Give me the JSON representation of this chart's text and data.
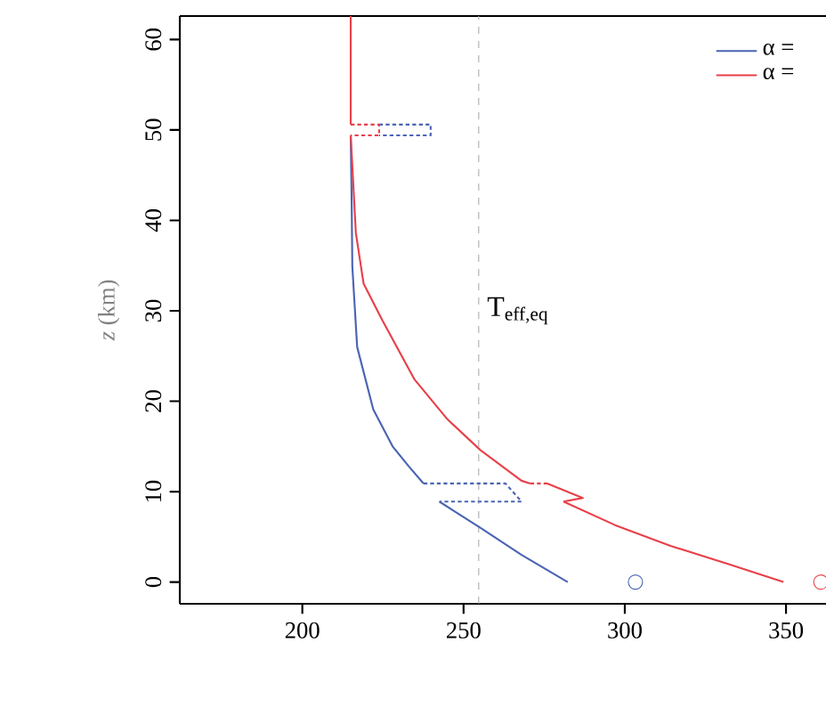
{
  "chart_data": {
    "type": "line",
    "ylabel": "*z* (km)",
    "xlim": [
      162,
      362.4
    ],
    "ylim": [
      -2.4,
      62.6
    ],
    "xticks": [
      200,
      250,
      300,
      350
    ],
    "yticks": [
      0,
      10,
      20,
      30,
      40,
      50,
      60
    ],
    "legend": "top right",
    "marker": "none",
    "ref_lines": [
      {
        "axis": "x",
        "value": 254.7,
        "label": "T$_{eff,eq}$",
        "color": "#aaaaaa",
        "line_style": "dashed"
      }
    ],
    "series": [
      {
        "color": "#e8404a",
        "x": [
          215,
          215
        ],
        "values": [
          62.6,
          50.6
        ]
      },
      {
        "color": "#4a64b4",
        "line_style": "dotted",
        "x": [
          223.8,
          239.8,
          239.8,
          223.8
        ],
        "values": [
          50.6,
          50.6,
          49.4,
          49.4
        ]
      },
      {
        "color": "#e8404a",
        "line_style": "dotted",
        "x": [
          215,
          223.8,
          223.8,
          215
        ],
        "values": [
          50.6,
          50.6,
          49.4,
          49.4
        ]
      },
      {
        "name": "α =",
        "color": "#4a64b4",
        "x": [
          215,
          215.3,
          215.5,
          217,
          222,
          228,
          233,
          237.6
        ],
        "values": [
          49.4,
          42,
          34.9,
          26,
          19.1,
          15,
          12.8,
          10.9
        ]
      },
      {
        "color": "#4a64b4",
        "line_style": "dotted",
        "x": [
          237.6,
          263,
          268,
          242.5
        ],
        "values": [
          10.9,
          10.9,
          8.9,
          8.9
        ]
      },
      {
        "color": "#4a64b4",
        "x": [
          242.5,
          255.2,
          268,
          282.3
        ],
        "values": [
          8.9,
          6.0,
          3.0,
          0
        ]
      },
      {
        "name": "α =",
        "color": "#e8404a",
        "x": [
          215,
          215.8,
          216.6,
          219,
          224.9,
          234.8,
          245,
          255.2,
          268,
          270.7
        ],
        "values": [
          49.4,
          44,
          38.6,
          33,
          28.9,
          22.4,
          18,
          14.6,
          11.2,
          10.9
        ]
      },
      {
        "color": "#e8404a",
        "line_style": "dotted",
        "x": [
          270.7,
          276
        ],
        "values": [
          10.9,
          10.9
        ]
      },
      {
        "color": "#e8404a",
        "x": [
          276,
          287,
          281
        ],
        "values": [
          10.9,
          9.3,
          8.9
        ]
      },
      {
        "color": "#e8404a",
        "x": [
          281,
          297,
          314.2,
          332,
          349.2
        ],
        "values": [
          8.9,
          6.3,
          4.0,
          2.0,
          0
        ]
      },
      {
        "type": "scatter",
        "marker": "circle",
        "color": "#4a64b4",
        "x": [
          303.3
        ],
        "values": [
          0
        ]
      },
      {
        "type": "scatter",
        "marker": "circle",
        "color": "#e8404a",
        "x": [
          360.8
        ],
        "values": [
          0
        ]
      }
    ]
  }
}
